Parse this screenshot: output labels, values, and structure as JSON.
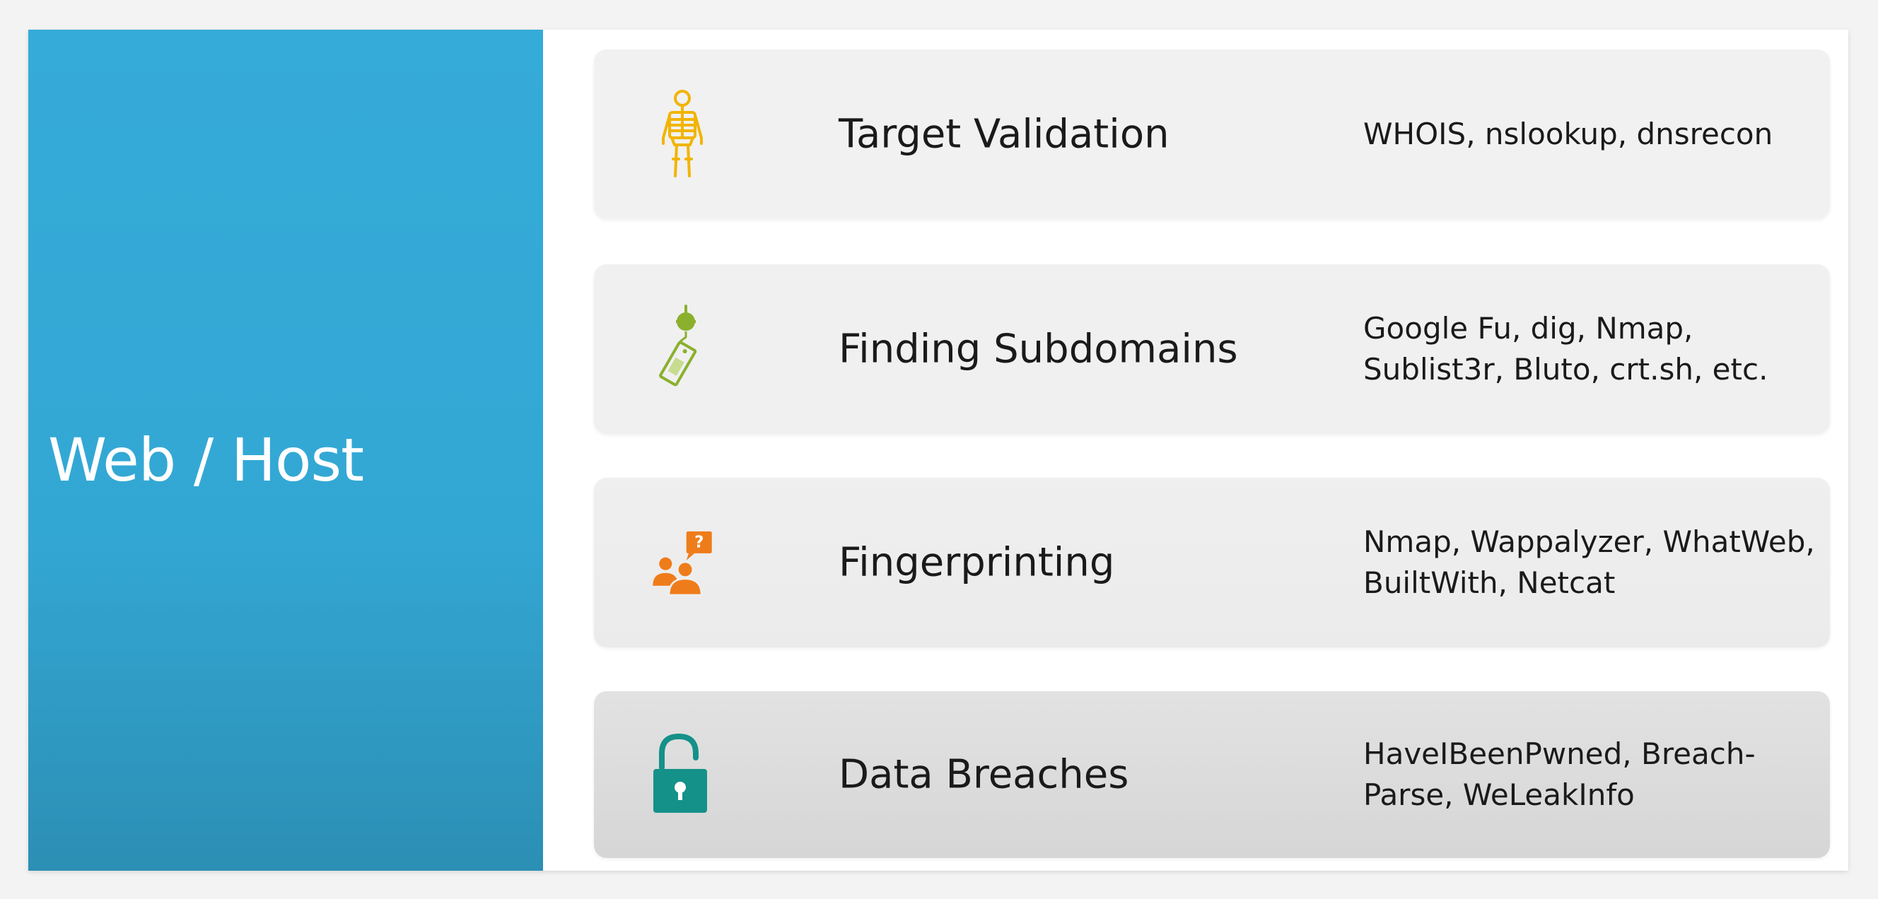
{
  "sidebar": {
    "title": "Web / Host",
    "background": "#35abd9"
  },
  "rows": [
    {
      "title": "Target Validation",
      "tools": "WHOIS, nslookup, dnsrecon",
      "icon": "skeleton-icon",
      "icon_color": "#f2b400"
    },
    {
      "title": "Finding Subdomains",
      "tools": "Google Fu, dig, Nmap, Sublist3r, Bluto, crt.sh, etc.",
      "icon": "price-tag-icon",
      "icon_color": "#8ab02d"
    },
    {
      "title": "Fingerprinting",
      "tools": "Nmap, Wappalyzer, WhatWeb, BuiltWith, Netcat",
      "icon": "people-question-icon",
      "icon_color": "#ef7c1a"
    },
    {
      "title": "Data Breaches",
      "tools": "HaveIBeenPwned, Breach-Parse, WeLeakInfo",
      "icon": "unlocked-padlock-icon",
      "icon_color": "#149189"
    }
  ]
}
